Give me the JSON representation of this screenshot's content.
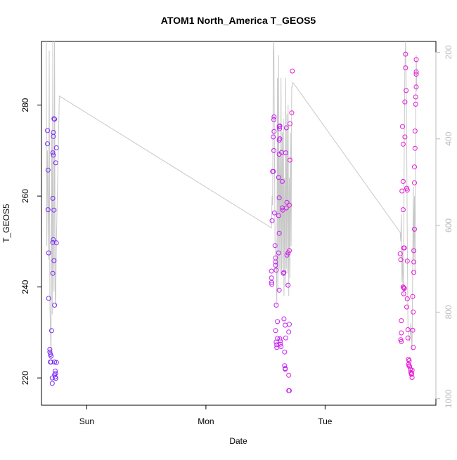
{
  "chart_data": {
    "type": "scatter",
    "title": "ATOM1 North_America T_GEOS5",
    "xlabel": "Date",
    "ylabel": "T_GEOS5",
    "x_ticks": [
      {
        "label": "Sun",
        "value": 0.0
      },
      {
        "label": "Mon",
        "value": 1.0
      },
      {
        "label": "Tue",
        "value": 2.0
      }
    ],
    "xlim": [
      -0.38,
      2.93
    ],
    "ylim": [
      214,
      294
    ],
    "y_ticks": [
      220,
      240,
      260,
      280
    ],
    "y2_ticks": [
      200,
      400,
      600,
      800,
      1000
    ],
    "y2lim": [
      1015,
      175
    ],
    "colors": {
      "early": "#7b2cf2",
      "mid": "#c41ff0",
      "late": "#e619d6",
      "line": "#c8c8c8",
      "axis": "#000000",
      "axis2": "#bbbbbb"
    },
    "series": [
      {
        "color_key": "early",
        "points": [
          [
            -0.33,
            274.4
          ],
          [
            -0.33,
            271.5
          ],
          [
            -0.325,
            265.7
          ],
          [
            -0.325,
            257.0
          ],
          [
            -0.32,
            247.5
          ],
          [
            -0.32,
            237.5
          ],
          [
            -0.31,
            226.3
          ],
          [
            -0.31,
            225.7
          ],
          [
            -0.305,
            225.2
          ],
          [
            -0.3,
            224.8
          ],
          [
            -0.305,
            223.5
          ],
          [
            -0.3,
            223.5
          ],
          [
            -0.295,
            230.4
          ],
          [
            -0.29,
            220.0
          ],
          [
            -0.29,
            218.8
          ],
          [
            -0.285,
            269.5
          ],
          [
            -0.28,
            273.1
          ],
          [
            -0.28,
            274.0
          ],
          [
            -0.275,
            277.0
          ],
          [
            -0.27,
            276.9
          ],
          [
            -0.28,
            269.0
          ],
          [
            -0.285,
            259.5
          ],
          [
            -0.28,
            250.4
          ],
          [
            -0.285,
            249.8
          ],
          [
            -0.275,
            256.9
          ],
          [
            -0.275,
            245.8
          ],
          [
            -0.285,
            243.0
          ],
          [
            -0.27,
            236.0
          ],
          [
            -0.27,
            223.5
          ],
          [
            -0.265,
            221.5
          ],
          [
            -0.262,
            221.0
          ],
          [
            -0.27,
            220.7
          ],
          [
            -0.265,
            220.2
          ],
          [
            -0.26,
            219.9
          ],
          [
            -0.255,
            223.4
          ],
          [
            -0.255,
            270.6
          ],
          [
            -0.26,
            267.3
          ],
          [
            -0.255,
            249.7
          ]
        ]
      },
      {
        "color_key": "mid",
        "points": [
          [
            1.55,
            243.5
          ],
          [
            1.55,
            242.0
          ],
          [
            1.552,
            241.0
          ],
          [
            1.553,
            240.6
          ],
          [
            1.555,
            254.6
          ],
          [
            1.56,
            265.4
          ],
          [
            1.565,
            265.4
          ],
          [
            1.565,
            273.0
          ],
          [
            1.57,
            276.8
          ],
          [
            1.572,
            277.4
          ],
          [
            1.572,
            274.2
          ],
          [
            1.57,
            270.0
          ],
          [
            1.575,
            256.3
          ],
          [
            1.58,
            249.1
          ],
          [
            1.585,
            246.4
          ],
          [
            1.585,
            245.5
          ],
          [
            1.585,
            244.8
          ],
          [
            1.59,
            243.7
          ],
          [
            1.59,
            236.0
          ],
          [
            1.585,
            230.4
          ],
          [
            1.59,
            227.9
          ],
          [
            1.595,
            227.3
          ],
          [
            1.595,
            226.7
          ],
          [
            1.6,
            228.7
          ],
          [
            1.6,
            232.4
          ],
          [
            1.61,
            247.5
          ],
          [
            1.61,
            255.7
          ],
          [
            1.615,
            251.8
          ],
          [
            1.615,
            259.6
          ],
          [
            1.61,
            264.1
          ],
          [
            1.615,
            269.2
          ],
          [
            1.615,
            272.3
          ],
          [
            1.617,
            274.8
          ],
          [
            1.615,
            275.3
          ],
          [
            1.62,
            275.4
          ],
          [
            1.62,
            272.6
          ],
          [
            1.615,
            239.3
          ],
          [
            1.62,
            228.6
          ],
          [
            1.625,
            228.1
          ],
          [
            1.625,
            227.4
          ],
          [
            1.63,
            226.9
          ],
          [
            1.635,
            269.6
          ],
          [
            1.64,
            263.2
          ],
          [
            1.64,
            257.4
          ],
          [
            1.645,
            256.9
          ],
          [
            1.65,
            243.0
          ],
          [
            1.655,
            243.2
          ],
          [
            1.655,
            233.0
          ],
          [
            1.66,
            225.7
          ],
          [
            1.66,
            222.7
          ],
          [
            1.665,
            222.1
          ],
          [
            1.665,
            221.9
          ],
          [
            1.665,
            231.6
          ],
          [
            1.67,
            228.8
          ],
          [
            1.67,
            269.5
          ],
          [
            1.675,
            275.0
          ],
          [
            1.675,
            257.4
          ],
          [
            1.68,
            258.6
          ],
          [
            1.68,
            247.0
          ],
          [
            1.69,
            247.5
          ],
          [
            1.69,
            240.4
          ],
          [
            1.695,
            230.1
          ],
          [
            1.7,
            231.8
          ],
          [
            1.7,
            217.2
          ],
          [
            1.695,
            217.2
          ]
        ]
      },
      {
        "color_key": "late",
        "points": [
          [
            1.695,
            220.6
          ],
          [
            1.7,
            248.0
          ],
          [
            1.7,
            258.0
          ],
          [
            1.705,
            267.9
          ],
          [
            1.705,
            275.9
          ],
          [
            1.72,
            278.3
          ],
          [
            1.725,
            287.5
          ],
          [
            2.63,
            247.3
          ],
          [
            2.635,
            246.0
          ],
          [
            2.64,
            228.0
          ],
          [
            2.635,
            228.4
          ],
          [
            2.64,
            229.9
          ],
          [
            2.64,
            232.6
          ],
          [
            2.645,
            261.1
          ],
          [
            2.65,
            275.3
          ],
          [
            2.655,
            271.4
          ],
          [
            2.655,
            263.2
          ],
          [
            2.655,
            257.0
          ],
          [
            2.66,
            248.6
          ],
          [
            2.665,
            248.6
          ],
          [
            2.655,
            240.0
          ],
          [
            2.66,
            239.8
          ],
          [
            2.665,
            239.7
          ],
          [
            2.66,
            238.5
          ],
          [
            2.67,
            273.0
          ],
          [
            2.67,
            280.7
          ],
          [
            2.675,
            288.2
          ],
          [
            2.675,
            291.2
          ],
          [
            2.68,
            283.2
          ],
          [
            2.685,
            261.7
          ],
          [
            2.69,
            261.3
          ],
          [
            2.69,
            245.7
          ],
          [
            2.685,
            235.6
          ],
          [
            2.69,
            237.4
          ],
          [
            2.695,
            230.6
          ],
          [
            2.695,
            228.8
          ],
          [
            2.7,
            224.1
          ],
          [
            2.7,
            223.0
          ],
          [
            2.705,
            222.7
          ],
          [
            2.705,
            223.8
          ],
          [
            2.71,
            222.5
          ],
          [
            2.715,
            221.9
          ],
          [
            2.72,
            221.2
          ],
          [
            2.725,
            220.8
          ],
          [
            2.725,
            221.0
          ],
          [
            2.73,
            221.7
          ],
          [
            2.73,
            220.1
          ],
          [
            2.735,
            237.9
          ],
          [
            2.74,
            234.5
          ],
          [
            2.735,
            230.5
          ],
          [
            2.74,
            226.7
          ],
          [
            2.745,
            243.2
          ],
          [
            2.745,
            245.5
          ],
          [
            2.745,
            248.0
          ],
          [
            2.75,
            252.7
          ],
          [
            2.75,
            262.9
          ],
          [
            2.75,
            266.4
          ],
          [
            2.755,
            270.5
          ],
          [
            2.755,
            274.3
          ],
          [
            2.76,
            280.2
          ],
          [
            2.76,
            281.8
          ],
          [
            2.765,
            284.0
          ],
          [
            2.765,
            286.8
          ],
          [
            2.765,
            287.3
          ],
          [
            2.765,
            290.0
          ]
        ]
      }
    ],
    "line_points": [
      [
        -0.34,
        294
      ],
      [
        -0.335,
        249
      ],
      [
        -0.33,
        270
      ],
      [
        -0.32,
        246
      ],
      [
        -0.315,
        292
      ],
      [
        -0.31,
        237
      ],
      [
        -0.3,
        224
      ],
      [
        -0.295,
        274
      ],
      [
        -0.29,
        234
      ],
      [
        -0.285,
        294
      ],
      [
        -0.28,
        250
      ],
      [
        -0.275,
        239
      ],
      [
        -0.27,
        294
      ],
      [
        -0.265,
        236
      ],
      [
        -0.26,
        238
      ],
      [
        -0.255,
        250
      ],
      [
        -0.25,
        256
      ],
      [
        -0.23,
        282
      ],
      [
        1.55,
        253
      ],
      [
        1.555,
        260
      ],
      [
        1.56,
        258
      ],
      [
        1.565,
        292
      ],
      [
        1.57,
        294
      ],
      [
        1.575,
        272
      ],
      [
        1.58,
        250
      ],
      [
        1.59,
        244
      ],
      [
        1.595,
        236
      ],
      [
        1.6,
        286
      ],
      [
        1.605,
        239
      ],
      [
        1.61,
        291
      ],
      [
        1.615,
        244
      ],
      [
        1.62,
        269
      ],
      [
        1.625,
        243
      ],
      [
        1.63,
        286
      ],
      [
        1.635,
        243
      ],
      [
        1.64,
        274
      ],
      [
        1.645,
        244
      ],
      [
        1.65,
        277
      ],
      [
        1.655,
        238
      ],
      [
        1.66,
        264
      ],
      [
        1.665,
        240
      ],
      [
        1.67,
        286
      ],
      [
        1.675,
        244
      ],
      [
        1.68,
        278
      ],
      [
        1.685,
        243
      ],
      [
        1.69,
        280
      ],
      [
        1.695,
        238
      ],
      [
        1.7,
        264
      ],
      [
        1.705,
        242
      ],
      [
        1.71,
        274
      ],
      [
        1.715,
        249
      ],
      [
        1.72,
        284
      ],
      [
        1.725,
        284
      ],
      [
        1.73,
        285
      ],
      [
        2.63,
        252
      ],
      [
        2.635,
        250
      ],
      [
        2.64,
        256
      ],
      [
        2.645,
        241
      ],
      [
        2.65,
        248
      ],
      [
        2.655,
        238
      ],
      [
        2.66,
        247
      ],
      [
        2.665,
        275
      ],
      [
        2.67,
        288
      ],
      [
        2.675,
        294
      ],
      [
        2.68,
        286
      ],
      [
        2.685,
        271
      ],
      [
        2.69,
        250
      ],
      [
        2.695,
        232
      ],
      [
        2.7,
        229
      ],
      [
        2.71,
        228
      ],
      [
        2.72,
        232
      ],
      [
        2.73,
        226
      ],
      [
        2.74,
        262
      ],
      [
        2.745,
        246
      ],
      [
        2.75,
        260
      ],
      [
        2.755,
        243
      ],
      [
        2.76,
        273
      ],
      [
        2.765,
        291
      ],
      [
        2.77,
        283
      ]
    ]
  }
}
